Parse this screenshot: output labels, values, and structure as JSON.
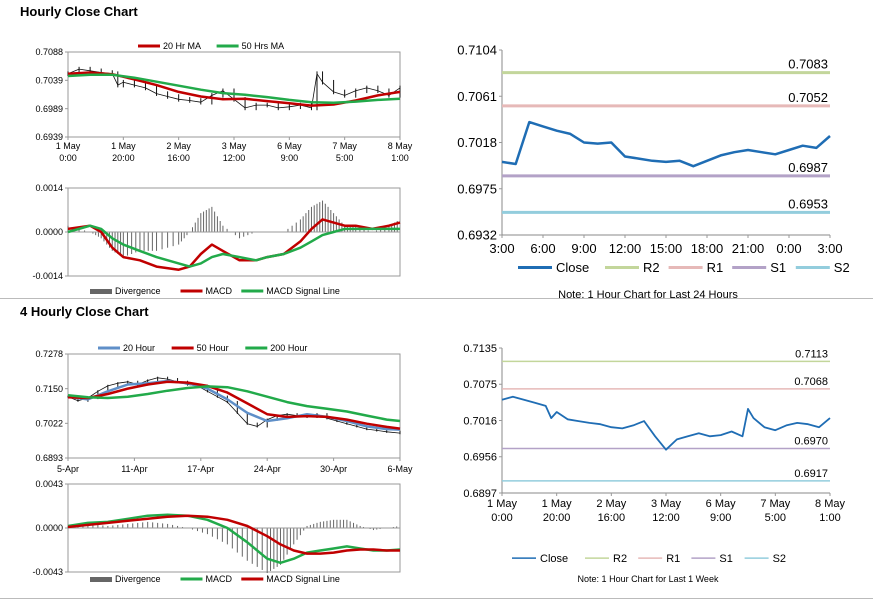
{
  "sections": {
    "hourly_title": "Hourly Close Chart",
    "four_hourly_title": "4 Hourly Close Chart"
  },
  "colors": {
    "red": "#c00000",
    "green": "#22aa4a",
    "blue": "#1f6db4",
    "lightblue": "#5f8fc8",
    "gray": "#666666",
    "r2": "#c3d69b",
    "r1": "#e6b9b8",
    "s1": "#b3a2c7",
    "s2": "#93cddd"
  },
  "chart_data": [
    {
      "type": "line",
      "id": "hourly_price",
      "ylim": [
        0.6939,
        0.7088
      ],
      "yticks": [
        "0.7088",
        "0.7039",
        "0.6989",
        "0.6939"
      ],
      "xticks": [
        [
          "1 May",
          "0:00"
        ],
        [
          "1 May",
          "20:00"
        ],
        [
          "2 May",
          "16:00"
        ],
        [
          "3 May",
          "12:00"
        ],
        [
          "6 May",
          "9:00"
        ],
        [
          "7 May",
          "5:00"
        ],
        [
          "8 May",
          "1:00"
        ]
      ],
      "xmax": 120,
      "series": [
        {
          "name": "20 Hr MA",
          "color": "#c00000",
          "x": [
            0,
            8,
            16,
            24,
            32,
            40,
            48,
            56,
            64,
            72,
            80,
            88,
            96,
            104,
            112,
            120
          ],
          "values": [
            0.705,
            0.7052,
            0.7049,
            0.704,
            0.703,
            0.7018,
            0.701,
            0.7005,
            0.7006,
            0.7002,
            0.6998,
            0.6994,
            0.6996,
            0.7003,
            0.7012,
            0.7018
          ]
        },
        {
          "name": "50 Hrs MA",
          "color": "#22aa4a",
          "x": [
            0,
            8,
            16,
            24,
            32,
            40,
            48,
            56,
            64,
            72,
            80,
            88,
            96,
            104,
            112,
            120
          ],
          "values": [
            0.7046,
            0.7048,
            0.7048,
            0.7043,
            0.7036,
            0.7029,
            0.7022,
            0.7016,
            0.7013,
            0.7009,
            0.7004,
            0.7,
            0.6999,
            0.7001,
            0.7004,
            0.7006
          ]
        }
      ],
      "close": {
        "x": [
          0,
          4,
          8,
          12,
          16,
          18,
          20,
          24,
          28,
          32,
          36,
          40,
          44,
          48,
          52,
          56,
          60,
          64,
          68,
          72,
          76,
          80,
          84,
          88,
          90,
          92,
          96,
          100,
          104,
          108,
          112,
          116,
          120
        ],
        "values": [
          0.705,
          0.7058,
          0.7055,
          0.7052,
          0.705,
          0.703,
          0.7035,
          0.703,
          0.7025,
          0.7015,
          0.701,
          0.7005,
          0.7003,
          0.7,
          0.7012,
          0.702,
          0.7005,
          0.699,
          0.6995,
          0.6995,
          0.699,
          0.6992,
          0.6995,
          0.699,
          0.705,
          0.7035,
          0.7018,
          0.7012,
          0.702,
          0.7025,
          0.702,
          0.7012,
          0.7025
        ]
      }
    },
    {
      "type": "line",
      "id": "hourly_macd",
      "ylim": [
        -0.0014,
        0.0014
      ],
      "yticks": [
        "0.0014",
        "0.0000",
        "-0.0014"
      ],
      "xmax": 120,
      "series": [
        {
          "name": "MACD",
          "color": "#c00000",
          "x": [
            0,
            8,
            12,
            16,
            20,
            26,
            32,
            40,
            44,
            48,
            52,
            56,
            62,
            68,
            72,
            78,
            84,
            88,
            92,
            96,
            100,
            104,
            110,
            116,
            120
          ],
          "values": [
            0.0001,
            0.0002,
            0.0,
            -0.0005,
            -0.0008,
            -0.0009,
            -0.0011,
            -0.0012,
            -0.0011,
            -0.0007,
            -0.0004,
            -0.0006,
            -0.0009,
            -0.0009,
            -0.0008,
            -0.0007,
            -0.0003,
            0.0001,
            0.0004,
            0.0003,
            0.0002,
            0.0002,
            0.0001,
            0.0002,
            0.0003
          ]
        },
        {
          "name": "MACD Signal Line",
          "color": "#22aa4a",
          "x": [
            0,
            8,
            12,
            16,
            20,
            26,
            32,
            40,
            44,
            48,
            52,
            56,
            62,
            68,
            72,
            78,
            84,
            88,
            92,
            96,
            100,
            104,
            110,
            116,
            120
          ],
          "values": [
            0.0,
            0.0002,
            0.0001,
            -0.0002,
            -0.0004,
            -0.0006,
            -0.0008,
            -0.001,
            -0.0011,
            -0.001,
            -0.0008,
            -0.0007,
            -0.0008,
            -0.0009,
            -0.0008,
            -0.0007,
            -0.0005,
            -0.0003,
            -0.0001,
            0.0,
            0.0001,
            0.0001,
            0.0001,
            0.0001,
            0.0001
          ]
        }
      ],
      "divergence_name": "Divergence"
    },
    {
      "type": "line",
      "id": "hourly_pivot",
      "ylim": [
        0.6932,
        0.7104
      ],
      "yticks": [
        "0.7104",
        "0.7061",
        "0.7018",
        "0.6975",
        "0.6932"
      ],
      "xticks": [
        "3:00",
        "6:00",
        "9:00",
        "12:00",
        "15:00",
        "18:00",
        "21:00",
        "0:00",
        "3:00"
      ],
      "xmax": 24,
      "close": {
        "name": "Close",
        "color": "#1f6db4",
        "x": [
          0,
          1,
          2,
          3,
          4,
          5,
          6,
          7,
          8,
          9,
          10,
          11,
          12,
          13,
          14,
          15,
          16,
          17,
          18,
          19,
          20,
          21,
          22,
          23,
          24
        ],
        "values": [
          0.7,
          0.6998,
          0.7037,
          0.7033,
          0.7029,
          0.7026,
          0.7018,
          0.7017,
          0.7018,
          0.7005,
          0.7003,
          0.7001,
          0.7,
          0.7001,
          0.6996,
          0.7001,
          0.7006,
          0.7009,
          0.7011,
          0.7009,
          0.7007,
          0.7011,
          0.7015,
          0.7013,
          0.7024
        ]
      },
      "levels": [
        {
          "name": "R2",
          "value": 0.7083,
          "label": "0.7083",
          "color": "#c3d69b"
        },
        {
          "name": "R1",
          "value": 0.7052,
          "label": "0.7052",
          "color": "#e6b9b8"
        },
        {
          "name": "S1",
          "value": 0.6987,
          "label": "0.6987",
          "color": "#b3a2c7"
        },
        {
          "name": "S2",
          "value": 0.6953,
          "label": "0.6953",
          "color": "#93cddd"
        }
      ],
      "note": "Note: 1 Hour Chart for Last 24 Hours"
    },
    {
      "type": "line",
      "id": "fourhour_price",
      "ylim": [
        0.6893,
        0.7278
      ],
      "yticks": [
        "0.7278",
        "0.7150",
        "0.7022",
        "0.6893"
      ],
      "xticks": [
        "5-Apr",
        "11-Apr",
        "17-Apr",
        "24-Apr",
        "30-Apr",
        "6-May"
      ],
      "xmax": 100,
      "series": [
        {
          "name": "20 Hour",
          "color": "#5f8fc8",
          "x": [
            0,
            6,
            12,
            18,
            24,
            30,
            36,
            42,
            48,
            54,
            60,
            66,
            72,
            78,
            84,
            90,
            96,
            100
          ],
          "values": [
            0.712,
            0.711,
            0.714,
            0.7165,
            0.717,
            0.7178,
            0.717,
            0.715,
            0.711,
            0.706,
            0.703,
            0.704,
            0.7055,
            0.7045,
            0.703,
            0.701,
            0.7,
            0.6998
          ]
        },
        {
          "name": "50 Hour",
          "color": "#c00000",
          "x": [
            0,
            6,
            12,
            18,
            24,
            30,
            36,
            42,
            48,
            54,
            60,
            66,
            72,
            78,
            84,
            90,
            96,
            100
          ],
          "values": [
            0.7118,
            0.7115,
            0.713,
            0.715,
            0.7165,
            0.7175,
            0.7172,
            0.716,
            0.7135,
            0.7095,
            0.7055,
            0.7045,
            0.7048,
            0.7045,
            0.7035,
            0.702,
            0.7008,
            0.7002
          ]
        },
        {
          "name": "200 Hour",
          "color": "#22aa4a",
          "x": [
            0,
            6,
            12,
            18,
            24,
            30,
            36,
            42,
            48,
            54,
            60,
            66,
            72,
            78,
            84,
            90,
            96,
            100
          ],
          "values": [
            0.7125,
            0.7118,
            0.7115,
            0.712,
            0.713,
            0.7142,
            0.7152,
            0.7158,
            0.7155,
            0.714,
            0.712,
            0.71,
            0.7085,
            0.7075,
            0.7065,
            0.705,
            0.7035,
            0.703
          ]
        }
      ],
      "close": {
        "x": [
          0,
          3,
          6,
          9,
          12,
          15,
          18,
          21,
          24,
          27,
          30,
          33,
          36,
          39,
          42,
          45,
          48,
          51,
          54,
          57,
          60,
          63,
          66,
          69,
          72,
          75,
          78,
          81,
          84,
          87,
          90,
          93,
          96,
          100
        ],
        "values": [
          0.712,
          0.7105,
          0.7115,
          0.714,
          0.716,
          0.717,
          0.7175,
          0.7165,
          0.718,
          0.719,
          0.7185,
          0.7175,
          0.7165,
          0.716,
          0.714,
          0.712,
          0.71,
          0.706,
          0.702,
          0.701,
          0.7035,
          0.705,
          0.7055,
          0.705,
          0.7045,
          0.7055,
          0.704,
          0.703,
          0.702,
          0.701,
          0.7,
          0.6995,
          0.699,
          0.6985
        ]
      }
    },
    {
      "type": "line",
      "id": "fourhour_macd",
      "ylim": [
        -0.0043,
        0.0043
      ],
      "yticks": [
        "0.0043",
        "0.0000",
        "-0.0043"
      ],
      "xmax": 100,
      "series": [
        {
          "name": "MACD",
          "color": "#22aa4a",
          "x": [
            0,
            6,
            12,
            18,
            24,
            30,
            36,
            42,
            48,
            54,
            60,
            64,
            68,
            72,
            76,
            80,
            84,
            88,
            92,
            96,
            100
          ],
          "values": [
            0.0002,
            0.0005,
            0.0006,
            0.0009,
            0.0012,
            0.0013,
            0.0012,
            0.0008,
            0.0,
            -0.0014,
            -0.003,
            -0.0034,
            -0.003,
            -0.0024,
            -0.0022,
            -0.002,
            -0.0018,
            -0.002,
            -0.0022,
            -0.0022,
            -0.0021
          ]
        },
        {
          "name": "MACD Signal Line",
          "color": "#c00000",
          "x": [
            0,
            6,
            12,
            18,
            24,
            30,
            36,
            42,
            48,
            54,
            60,
            64,
            68,
            72,
            76,
            80,
            84,
            88,
            92,
            96,
            100
          ],
          "values": [
            0.0001,
            0.0003,
            0.0005,
            0.0007,
            0.0009,
            0.0011,
            0.0012,
            0.0011,
            0.0008,
            0.0002,
            -0.0008,
            -0.0016,
            -0.0022,
            -0.0025,
            -0.0025,
            -0.0024,
            -0.0022,
            -0.0021,
            -0.0021,
            -0.0022,
            -0.0022
          ]
        }
      ],
      "divergence_name": "Divergence"
    },
    {
      "type": "line",
      "id": "fourhour_pivot",
      "ylim": [
        0.6897,
        0.7135
      ],
      "yticks": [
        "0.7135",
        "0.7075",
        "0.7016",
        "0.6956",
        "0.6897"
      ],
      "xticks": [
        [
          "1 May",
          "0:00"
        ],
        [
          "1 May",
          "20:00"
        ],
        [
          "2 May",
          "16:00"
        ],
        [
          "3 May",
          "12:00"
        ],
        [
          "6 May",
          "9:00"
        ],
        [
          "7 May",
          "5:00"
        ],
        [
          "8 May",
          "1:00"
        ]
      ],
      "xmax": 120,
      "close": {
        "name": "Close",
        "color": "#1f6db4",
        "x": [
          0,
          4,
          8,
          12,
          16,
          18,
          20,
          24,
          28,
          32,
          36,
          40,
          44,
          48,
          52,
          56,
          60,
          64,
          68,
          72,
          76,
          80,
          84,
          88,
          90,
          92,
          96,
          100,
          104,
          108,
          112,
          116,
          120
        ],
        "values": [
          0.705,
          0.7055,
          0.705,
          0.7045,
          0.704,
          0.702,
          0.703,
          0.7018,
          0.7015,
          0.7012,
          0.701,
          0.7005,
          0.7003,
          0.7008,
          0.7015,
          0.699,
          0.6968,
          0.6985,
          0.699,
          0.6995,
          0.699,
          0.6992,
          0.6998,
          0.699,
          0.7035,
          0.702,
          0.7005,
          0.7,
          0.7008,
          0.7012,
          0.701,
          0.7005,
          0.702
        ]
      },
      "levels": [
        {
          "name": "R2",
          "value": 0.7113,
          "label": "0.7113",
          "color": "#c3d69b"
        },
        {
          "name": "R1",
          "value": 0.7068,
          "label": "0.7068",
          "color": "#e6b9b8"
        },
        {
          "name": "S1",
          "value": 0.697,
          "label": "0.6970",
          "color": "#b3a2c7"
        },
        {
          "name": "S2",
          "value": 0.6917,
          "label": "0.6917",
          "color": "#93cddd"
        }
      ],
      "note": "Note: 1 Hour Chart for Last 1 Week"
    }
  ]
}
